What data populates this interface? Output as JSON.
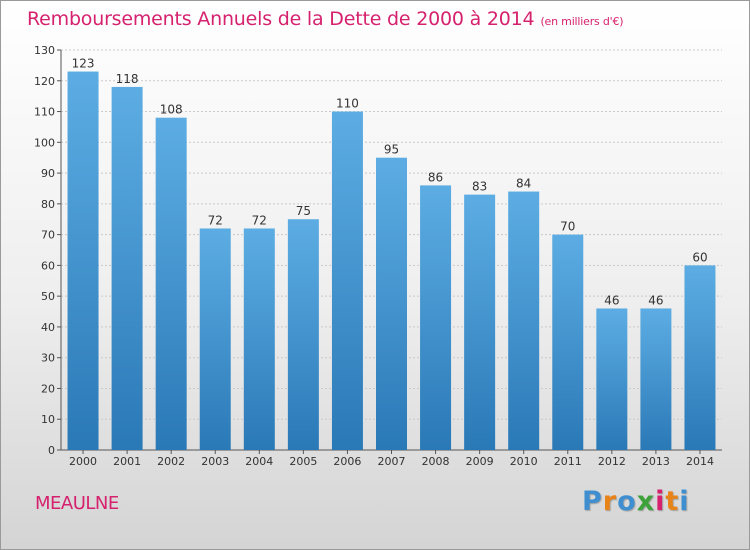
{
  "title": "Remboursements Annuels de la Dette de 2000 à 2014",
  "unit": "(en milliers d'€)",
  "commune": "MEAULNE",
  "logo": "Proxiti",
  "colors": {
    "title": "#d6226e",
    "bar_top": "#5dade4",
    "bar_bottom": "#2a79b7",
    "logo_letters": [
      "#3f8fd0",
      "#e8831a",
      "#3f8fd0",
      "#3ea23a",
      "#d6226e",
      "#e8831a",
      "#3f8fd0"
    ]
  },
  "chart_data": {
    "type": "bar",
    "title": "Remboursements Annuels de la Dette de 2000 à 2014",
    "categories": [
      "2000",
      "2001",
      "2002",
      "2003",
      "2004",
      "2005",
      "2006",
      "2007",
      "2008",
      "2009",
      "2010",
      "2011",
      "2012",
      "2013",
      "2014"
    ],
    "values": [
      123,
      118,
      108,
      72,
      72,
      75,
      110,
      95,
      86,
      83,
      84,
      70,
      46,
      46,
      60
    ],
    "ylim": [
      0,
      130
    ],
    "yticks": [
      0,
      10,
      20,
      30,
      40,
      50,
      60,
      70,
      80,
      90,
      100,
      110,
      120,
      130
    ],
    "grid": true,
    "data_labels": true
  }
}
